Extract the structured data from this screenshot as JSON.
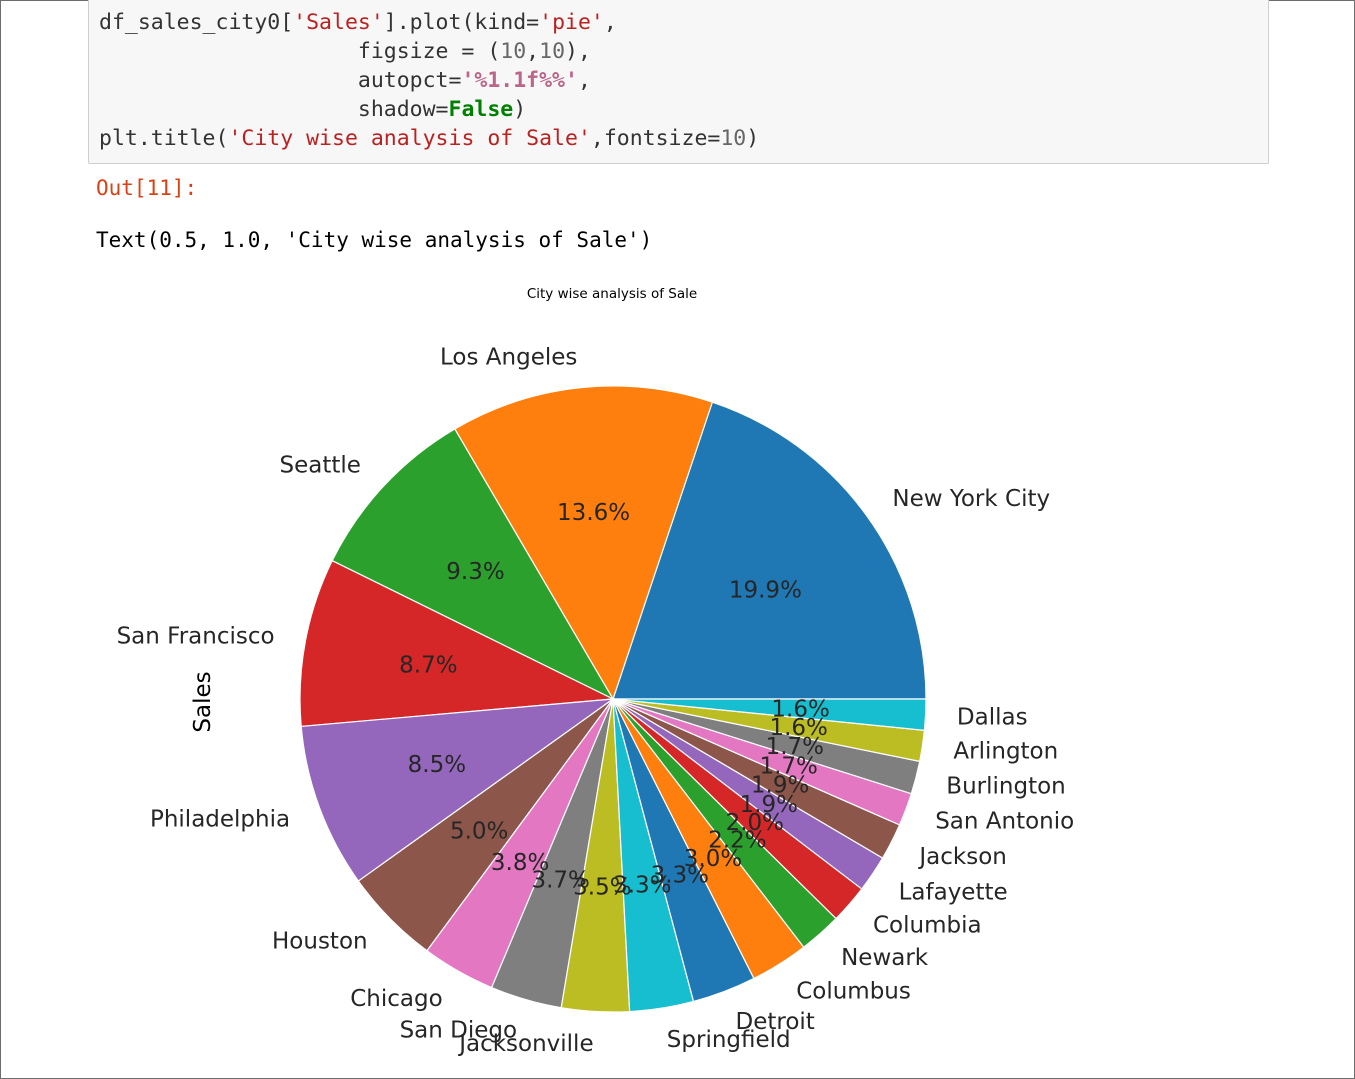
{
  "notebook": {
    "code_lines": [
      [
        {
          "t": "df_sales_city0[",
          "c": ""
        },
        {
          "t": "'Sales'",
          "c": "str"
        },
        {
          "t": "].plot(kind=",
          "c": ""
        },
        {
          "t": "'pie'",
          "c": "str"
        },
        {
          "t": ",",
          "c": ""
        }
      ],
      [
        {
          "t": "                    figsize = (",
          "c": ""
        },
        {
          "t": "10",
          "c": "num"
        },
        {
          "t": ",",
          "c": ""
        },
        {
          "t": "10",
          "c": "num"
        },
        {
          "t": "),",
          "c": ""
        }
      ],
      [
        {
          "t": "                    autopct=",
          "c": ""
        },
        {
          "t": "'%1.1f%%'",
          "c": "fmt"
        },
        {
          "t": ",",
          "c": ""
        }
      ],
      [
        {
          "t": "                    shadow=",
          "c": ""
        },
        {
          "t": "False",
          "c": "kw"
        },
        {
          "t": ")",
          "c": ""
        }
      ],
      [
        {
          "t": "plt.title(",
          "c": ""
        },
        {
          "t": "'City wise analysis of Sale'",
          "c": "str"
        },
        {
          "t": ",fontsize=",
          "c": ""
        },
        {
          "t": "10",
          "c": "num"
        },
        {
          "t": ")",
          "c": ""
        }
      ]
    ],
    "out_prompt": "Out[11]:",
    "out_text": "Text(0.5, 1.0, 'City wise analysis of Sale')"
  },
  "chart_data": {
    "type": "pie",
    "title": "City wise analysis of Sale",
    "ylabel": "Sales",
    "start_angle_deg": 0,
    "direction": "counterclockwise",
    "categories": [
      "New York City",
      "Los Angeles",
      "Seattle",
      "San Francisco",
      "Philadelphia",
      "Houston",
      "Chicago",
      "San Diego",
      "Jacksonville",
      "Springfield",
      "Detroit",
      "Columbus",
      "Newark",
      "Columbia",
      "Lafayette",
      "Jackson",
      "San Antonio",
      "Burlington",
      "Arlington",
      "Dallas"
    ],
    "values": [
      19.9,
      13.6,
      9.3,
      8.7,
      8.5,
      5.0,
      3.8,
      3.7,
      3.5,
      3.3,
      3.3,
      3.0,
      2.2,
      2.0,
      1.9,
      1.9,
      1.7,
      1.7,
      1.6,
      1.6
    ],
    "pct_labels": [
      "19.9%",
      "13.6%",
      "9.3%",
      "8.7%",
      "8.5%",
      "5.0%",
      "3.8%",
      "3.7%",
      "3.5%",
      "3.3%",
      "3.3%",
      "3.0%",
      "2.2%",
      "2.0%",
      "1.9%",
      "1.9%",
      "1.7%",
      "1.7%",
      "1.6%",
      "1.6%"
    ],
    "colors": [
      "#1f77b4",
      "#ff7f0e",
      "#2ca02c",
      "#d62728",
      "#9467bd",
      "#8c564b",
      "#e377c2",
      "#7f7f7f",
      "#bcbd22",
      "#17becf",
      "#1f77b4",
      "#ff7f0e",
      "#2ca02c",
      "#d62728",
      "#9467bd",
      "#8c564b",
      "#e377c2",
      "#7f7f7f",
      "#bcbd22",
      "#17becf"
    ]
  }
}
